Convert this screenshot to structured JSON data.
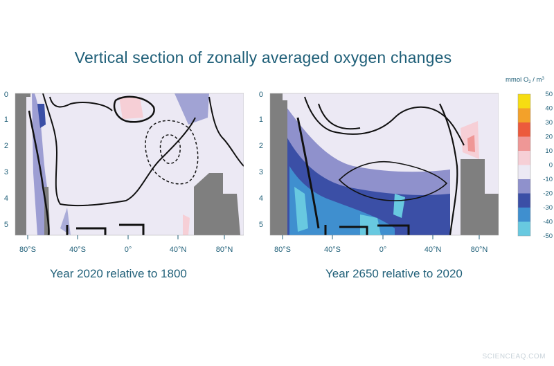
{
  "title": "Vertical section of zonally averaged oxygen changes",
  "colorbar": {
    "unit": "mmol O",
    "unit_sub": "2",
    "unit_tail": " / m",
    "unit_sup": "3",
    "levels": [
      {
        "label": "50",
        "color": "#f6dd12"
      },
      {
        "label": "40",
        "color": "#f3a12a"
      },
      {
        "label": "30",
        "color": "#ec5a3c"
      },
      {
        "label": "20",
        "color": "#ef9796"
      },
      {
        "label": "10",
        "color": "#f6cfd6"
      },
      {
        "label": "0",
        "color": "#ece9f4"
      },
      {
        "label": "-10",
        "color": "#8f91cc"
      },
      {
        "label": "-20",
        "color": "#3b4fa6"
      },
      {
        "label": "-30",
        "color": "#3f8fcf"
      },
      {
        "label": "-40",
        "color": "#68c9e0"
      },
      {
        "label": "-50",
        "color": ""
      }
    ]
  },
  "chart_data": [
    {
      "type": "heatmap",
      "title": "",
      "caption": "Year 2020 relative to 1800",
      "xlabel": "",
      "ylabel": "",
      "x_ticks": [
        "80°S",
        "40°S",
        "0°",
        "40°N",
        "80°N"
      ],
      "y_ticks": [
        "0",
        "1",
        "2",
        "3",
        "4",
        "5"
      ],
      "xlim": [
        -90,
        90
      ],
      "ylim": [
        5.5,
        0
      ],
      "dominant_range": [
        0,
        -10
      ],
      "regions": [
        {
          "range": "-10 to -20",
          "description": "thin bands near 60°S and 40-60°N surface"
        },
        {
          "range": "0 to 10",
          "description": "small patches near equator surface and 60°N"
        }
      ]
    },
    {
      "type": "heatmap",
      "title": "",
      "caption": "Year 2650 relative to 2020",
      "xlabel": "",
      "ylabel": "",
      "x_ticks": [
        "80°S",
        "40°S",
        "0°",
        "40°N",
        "80°N"
      ],
      "y_ticks": [
        "0",
        "1",
        "2",
        "3",
        "4",
        "5"
      ],
      "xlim": [
        -90,
        90
      ],
      "ylim": [
        5.5,
        0
      ],
      "dominant_range": [
        0,
        -10
      ],
      "regions": [
        {
          "range": "-20 to -30",
          "description": "deep Southern Ocean and abyss below 3 km"
        },
        {
          "range": "-30 to -40",
          "description": "abyssal Southern Ocean below 4 km"
        },
        {
          "range": "10 to 20",
          "description": "high northern latitudes 1-2 km"
        }
      ]
    }
  ],
  "watermark": "SCIENCEAQ.COM"
}
